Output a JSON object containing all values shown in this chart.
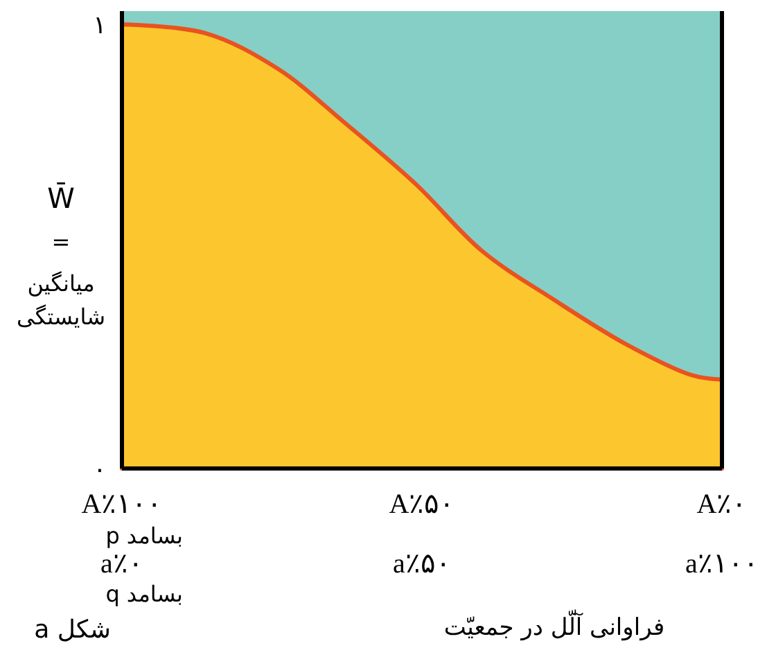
{
  "chart_data": {
    "type": "area",
    "xlabel": "فراوانی آلّل در جمعیّت",
    "ylabel": "W̄\n=\nمیانگین\nشایستگی",
    "x": [
      100,
      86,
      74,
      63,
      51,
      40,
      28,
      16,
      5,
      0
    ],
    "series": [
      {
        "color": "#fcc72e",
        "values": [
          1,
          0.98,
          0.9,
          0.78,
          0.64,
          0.49,
          0.38,
          0.28,
          0.21,
          0.2
        ]
      }
    ],
    "xlim": [
      100,
      0
    ],
    "xticks": [
      {
        "value": 100,
        "label": "A٪۱۰۰"
      },
      {
        "value": 50,
        "label": "A٪۵۰"
      },
      {
        "value": 0,
        "label": "A٪۰"
      }
    ],
    "x2lim": [
      0,
      100
    ],
    "x2ticks": [
      {
        "value": 0,
        "label": "a٪۰"
      },
      {
        "value": 50,
        "label": "a٪۵۰"
      },
      {
        "value": 100,
        "label": "a٪۱۰۰"
      }
    ],
    "ylim": [
      0,
      1.03
    ],
    "yticks": [
      {
        "value": 0,
        "label": "۰"
      },
      {
        "value": 1,
        "label": "۱"
      }
    ],
    "grid": false,
    "bands": [
      {
        "axis": "y",
        "from": 0,
        "to": 1.03,
        "color": "#86cfc7"
      }
    ],
    "annotations": [
      "بسامد p",
      "بسامد q",
      "شکل a"
    ]
  }
}
